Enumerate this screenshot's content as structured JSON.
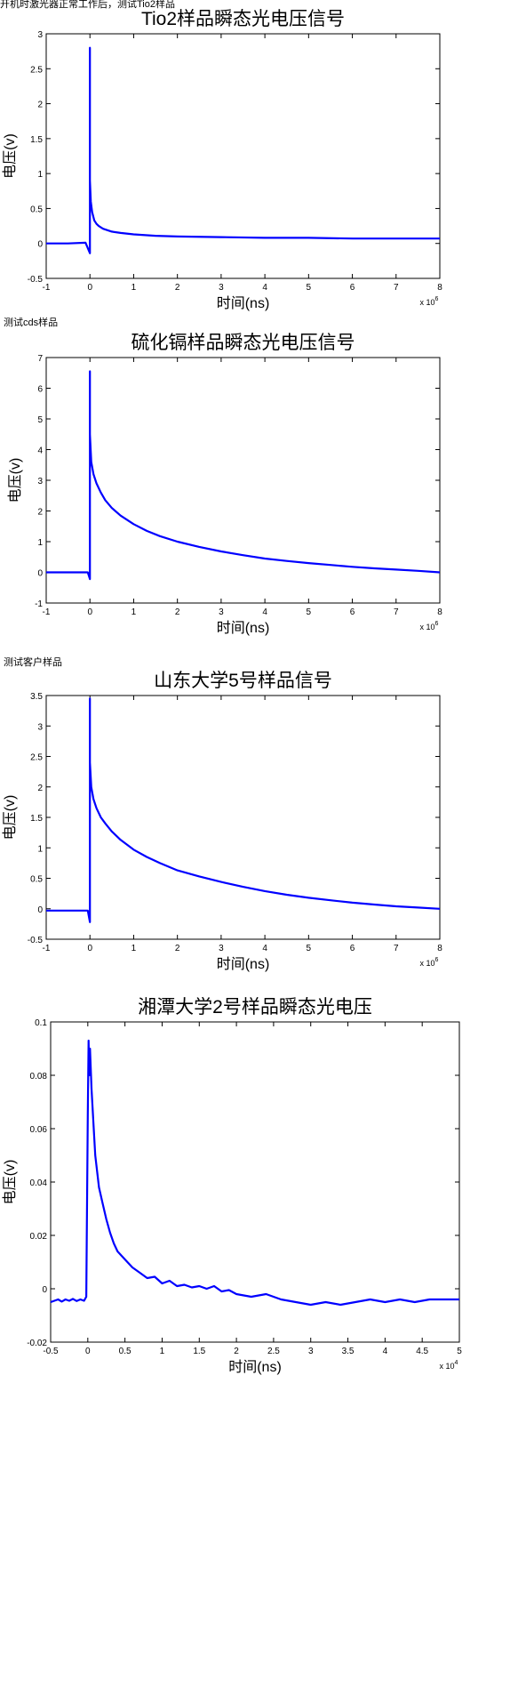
{
  "captions": [
    "开机时激光器正常工作后，测试Tio2样品",
    "测试cds样品",
    "测试客户样品"
  ],
  "chart_data": [
    {
      "type": "line",
      "title": "Tio2样品瞬态光电压信号",
      "xlabel": "时间(ns)",
      "ylabel": "电压(v)",
      "x_multiplier": "x 10^6",
      "xlim": [
        -1,
        8
      ],
      "ylim": [
        -0.5,
        3
      ],
      "xticks": [
        -1,
        0,
        1,
        2,
        3,
        4,
        5,
        6,
        7,
        8
      ],
      "yticks": [
        -0.5,
        0,
        0.5,
        1,
        1.5,
        2,
        2.5,
        3
      ],
      "series": [
        {
          "color": "#0000ff",
          "x": [
            -1,
            -0.5,
            -0.1,
            0,
            0,
            0,
            0.02,
            0.05,
            0.1,
            0.15,
            0.2,
            0.3,
            0.4,
            0.5,
            0.7,
            1,
            1.5,
            2,
            3,
            4,
            5,
            6,
            7,
            8
          ],
          "y": [
            0,
            0,
            0.01,
            -0.14,
            2.8,
            0.9,
            0.6,
            0.45,
            0.33,
            0.28,
            0.25,
            0.21,
            0.19,
            0.17,
            0.15,
            0.13,
            0.11,
            0.1,
            0.09,
            0.08,
            0.08,
            0.07,
            0.07,
            0.07
          ]
        }
      ]
    },
    {
      "type": "line",
      "title": "硫化镉样品瞬态光电压信号",
      "xlabel": "时间(ns)",
      "ylabel": "电压(v)",
      "x_multiplier": "x 10^6",
      "xlim": [
        -1,
        8
      ],
      "ylim": [
        -1,
        7
      ],
      "xticks": [
        -1,
        0,
        1,
        2,
        3,
        4,
        5,
        6,
        7,
        8
      ],
      "yticks": [
        -1,
        0,
        1,
        2,
        3,
        4,
        5,
        6,
        7
      ],
      "series": [
        {
          "color": "#0000ff",
          "x": [
            -1,
            -0.5,
            -0.05,
            0,
            0,
            0,
            0.03,
            0.08,
            0.15,
            0.25,
            0.35,
            0.5,
            0.7,
            1,
            1.3,
            1.6,
            2,
            2.5,
            3,
            3.5,
            4,
            4.5,
            5,
            5.5,
            6,
            6.5,
            7,
            7.5,
            8
          ],
          "y": [
            0,
            0,
            0,
            -0.22,
            6.55,
            4.5,
            3.6,
            3.2,
            2.9,
            2.6,
            2.35,
            2.1,
            1.85,
            1.57,
            1.35,
            1.18,
            1.0,
            0.83,
            0.68,
            0.56,
            0.45,
            0.37,
            0.3,
            0.24,
            0.18,
            0.13,
            0.09,
            0.05,
            0.0
          ]
        }
      ]
    },
    {
      "type": "line",
      "title": "山东大学5号样品信号",
      "xlabel": "时间(ns)",
      "ylabel": "电压(v)",
      "x_multiplier": "x 10^6",
      "xlim": [
        -1,
        8
      ],
      "ylim": [
        -0.5,
        3.5
      ],
      "xticks": [
        -1,
        0,
        1,
        2,
        3,
        4,
        5,
        6,
        7,
        8
      ],
      "yticks": [
        -0.5,
        0,
        0.5,
        1,
        1.5,
        2,
        2.5,
        3,
        3.5
      ],
      "series": [
        {
          "color": "#0000ff",
          "x": [
            -1,
            -0.5,
            -0.05,
            0,
            0,
            0,
            0.03,
            0.08,
            0.15,
            0.25,
            0.35,
            0.5,
            0.7,
            1,
            1.3,
            1.6,
            2,
            2.5,
            3,
            3.5,
            4,
            4.5,
            5,
            5.5,
            6,
            6.5,
            7,
            7.5,
            8
          ],
          "y": [
            -0.03,
            -0.03,
            -0.03,
            -0.22,
            3.45,
            2.4,
            2.0,
            1.8,
            1.65,
            1.5,
            1.4,
            1.27,
            1.13,
            0.97,
            0.85,
            0.75,
            0.63,
            0.53,
            0.44,
            0.36,
            0.29,
            0.23,
            0.18,
            0.14,
            0.1,
            0.07,
            0.04,
            0.02,
            0.0
          ]
        }
      ]
    },
    {
      "type": "line",
      "title": "湘潭大学2号样品瞬态光电压",
      "xlabel": "时间(ns)",
      "ylabel": "电压(v)",
      "x_multiplier": "x 10^4",
      "xlim": [
        -0.5,
        5
      ],
      "ylim": [
        -0.02,
        0.1
      ],
      "xticks": [
        -0.5,
        0,
        0.5,
        1,
        1.5,
        2,
        2.5,
        3,
        3.5,
        4,
        4.5,
        5
      ],
      "yticks": [
        -0.02,
        0,
        0.02,
        0.04,
        0.06,
        0.08,
        0.1
      ],
      "series": [
        {
          "color": "#0000ff",
          "x": [
            -0.5,
            -0.45,
            -0.4,
            -0.35,
            -0.3,
            -0.25,
            -0.2,
            -0.15,
            -0.1,
            -0.05,
            -0.02,
            0,
            0.01,
            0.02,
            0.03,
            0.05,
            0.08,
            0.1,
            0.15,
            0.2,
            0.25,
            0.3,
            0.35,
            0.4,
            0.5,
            0.6,
            0.7,
            0.8,
            0.9,
            1.0,
            1.1,
            1.2,
            1.3,
            1.4,
            1.5,
            1.6,
            1.7,
            1.8,
            1.9,
            2.0,
            2.2,
            2.4,
            2.6,
            2.8,
            3.0,
            3.2,
            3.4,
            3.6,
            3.8,
            4.0,
            4.2,
            4.4,
            4.6,
            4.8,
            5.0
          ],
          "y": [
            -0.005,
            -0.0045,
            -0.004,
            -0.0048,
            -0.004,
            -0.0045,
            -0.0038,
            -0.0046,
            -0.004,
            -0.0045,
            -0.003,
            0.065,
            0.093,
            0.08,
            0.09,
            0.075,
            0.06,
            0.05,
            0.038,
            0.032,
            0.026,
            0.021,
            0.017,
            0.014,
            0.011,
            0.008,
            0.006,
            0.004,
            0.0045,
            0.002,
            0.003,
            0.001,
            0.0015,
            0.0005,
            0.001,
            0.0,
            0.001,
            -0.001,
            -0.0005,
            -0.002,
            -0.003,
            -0.002,
            -0.004,
            -0.005,
            -0.006,
            -0.005,
            -0.006,
            -0.005,
            -0.004,
            -0.005,
            -0.004,
            -0.005,
            -0.004,
            -0.004,
            -0.004
          ]
        }
      ]
    }
  ]
}
